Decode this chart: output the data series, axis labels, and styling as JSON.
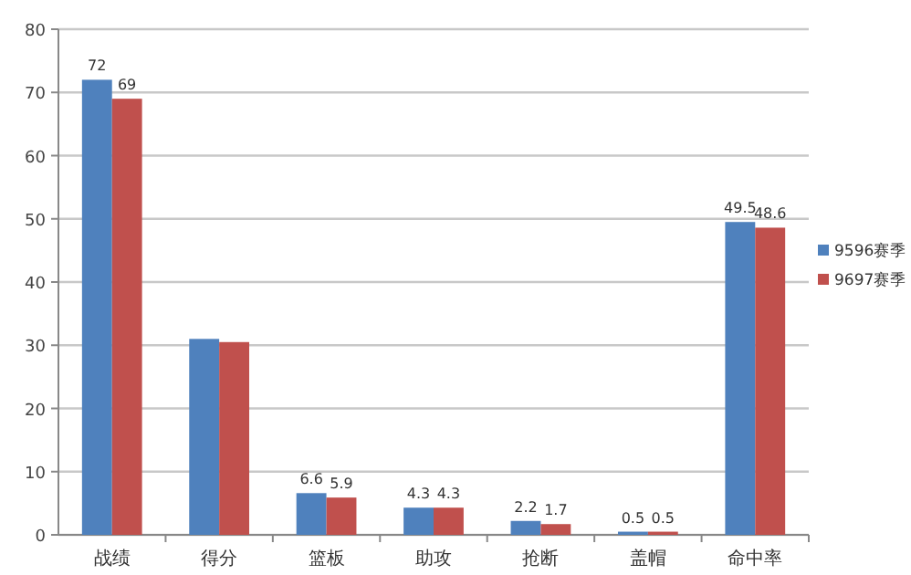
{
  "chart_data": {
    "type": "bar",
    "categories": [
      "战绩",
      "得分",
      "篮板",
      "助攻",
      "抢断",
      "盖帽",
      "命中率"
    ],
    "series": [
      {
        "name": "9596赛季",
        "color": "#4f81bd",
        "values": [
          72,
          31,
          6.6,
          4.3,
          2.2,
          0.5,
          49.5
        ],
        "value_labels": [
          "72",
          null,
          "6.6",
          "4.3",
          "2.2",
          "0.5",
          "49.5"
        ]
      },
      {
        "name": "9697赛季",
        "color": "#c0504d",
        "values": [
          69,
          30.5,
          5.9,
          4.3,
          1.7,
          0.5,
          48.6
        ],
        "value_labels": [
          "69",
          null,
          "5.9",
          "4.3",
          "1.7",
          "0.5",
          "48.6"
        ]
      }
    ],
    "ylim": [
      0,
      80
    ],
    "yticks": [
      0,
      10,
      20,
      30,
      40,
      50,
      60,
      70,
      80
    ],
    "grid": "y",
    "legend": "right"
  }
}
